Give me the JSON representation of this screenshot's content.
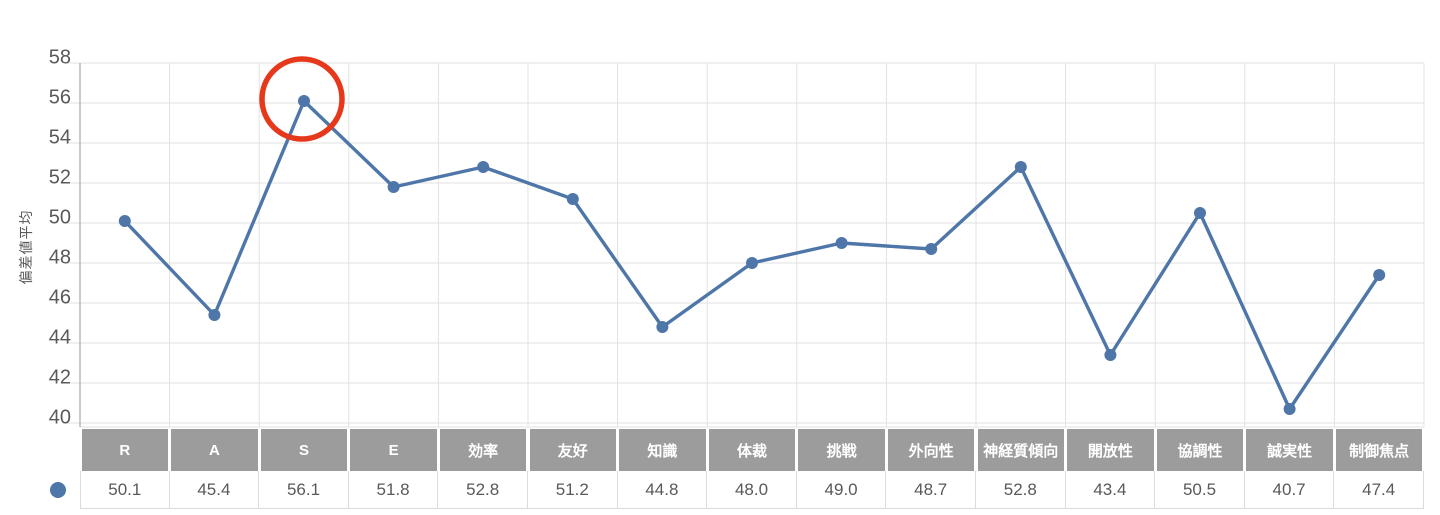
{
  "chart_data": {
    "type": "line",
    "categories": [
      "R",
      "A",
      "S",
      "E",
      "効率",
      "友好",
      "知識",
      "体裁",
      "挑戦",
      "外向性",
      "神経質傾向",
      "開放性",
      "協調性",
      "誠実性",
      "制御焦点"
    ],
    "series": [
      {
        "name": "偏差値平均",
        "values": [
          50.1,
          45.4,
          56.1,
          51.8,
          52.8,
          51.2,
          44.8,
          48.0,
          49.0,
          48.7,
          52.8,
          43.4,
          50.5,
          40.7,
          47.4
        ]
      }
    ],
    "title": "",
    "xlabel": "",
    "ylabel": "偏差値平均",
    "ylim": [
      39.8,
      58
    ],
    "yticks": [
      40,
      42,
      44,
      46,
      48,
      50,
      52,
      54,
      56,
      58
    ],
    "grid": true,
    "legend_position": "table-left-marker",
    "line_color": "#4e76a8",
    "marker_color": "#4e76a8",
    "annotation": {
      "shape": "circle",
      "category": "S",
      "category_index": 2,
      "value": 56.1,
      "color": "#e6391b"
    }
  },
  "table": {
    "header_bg": "#9c9c9c",
    "header_text_color": "#ffffff",
    "value_text_color": "#595959",
    "border_color": "#dcdcdc",
    "legend_marker_color": "#4e76a8"
  },
  "axis": {
    "tick_color": "#595959",
    "gridline_color": "#e2e2e2",
    "axis_line_color": "#a6a6a6"
  }
}
